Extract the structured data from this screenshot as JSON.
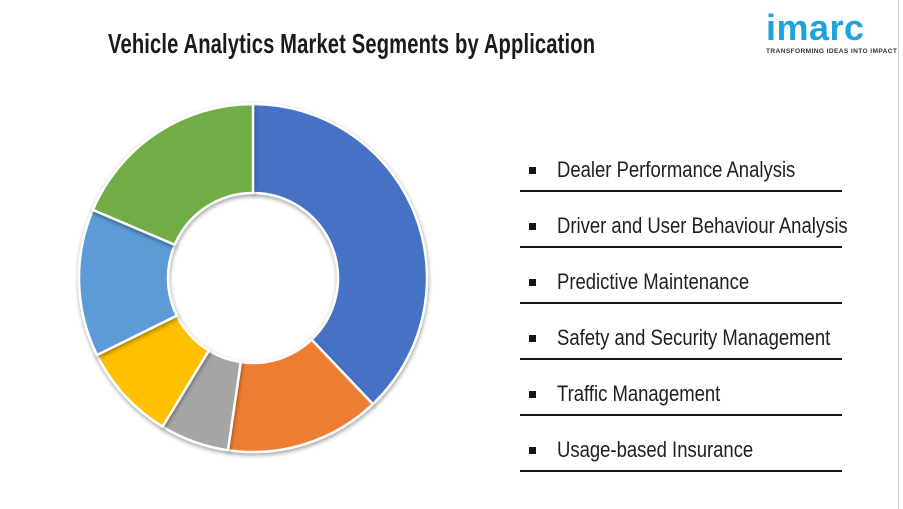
{
  "header": {
    "title": "Vehicle Analytics Market Segments by Application"
  },
  "logo": {
    "brand": "imarc",
    "tagline": "TRANSFORMING IDEAS INTO IMPACT",
    "brand_color": "#1FA3DC",
    "tagline_color": "#333333"
  },
  "chart_data": {
    "type": "pie",
    "subtype": "donut",
    "title": "Vehicle Analytics Market Segments by Application",
    "categories": [
      "Dealer Performance Analysis",
      "Driver and User Behaviour Analysis",
      "Predictive Maintenance",
      "Safety and Security Management",
      "Traffic Management",
      "Usage-based Insurance"
    ],
    "values": [
      37.9,
      14.4,
      6.4,
      9.0,
      13.7,
      18.6
    ],
    "values_unit": "percent share (estimated from arc angles; no data labels shown)",
    "colors": [
      "#4472C4",
      "#ED7D31",
      "#A5A5A5",
      "#FFC000",
      "#5B9BD5",
      "#70AD47"
    ],
    "start_angle_deg": 0,
    "direction": "clockwise",
    "inner_radius_ratio": 0.49,
    "data_labels_shown": false,
    "legend_position": "right",
    "legend_bullet": "▪"
  }
}
